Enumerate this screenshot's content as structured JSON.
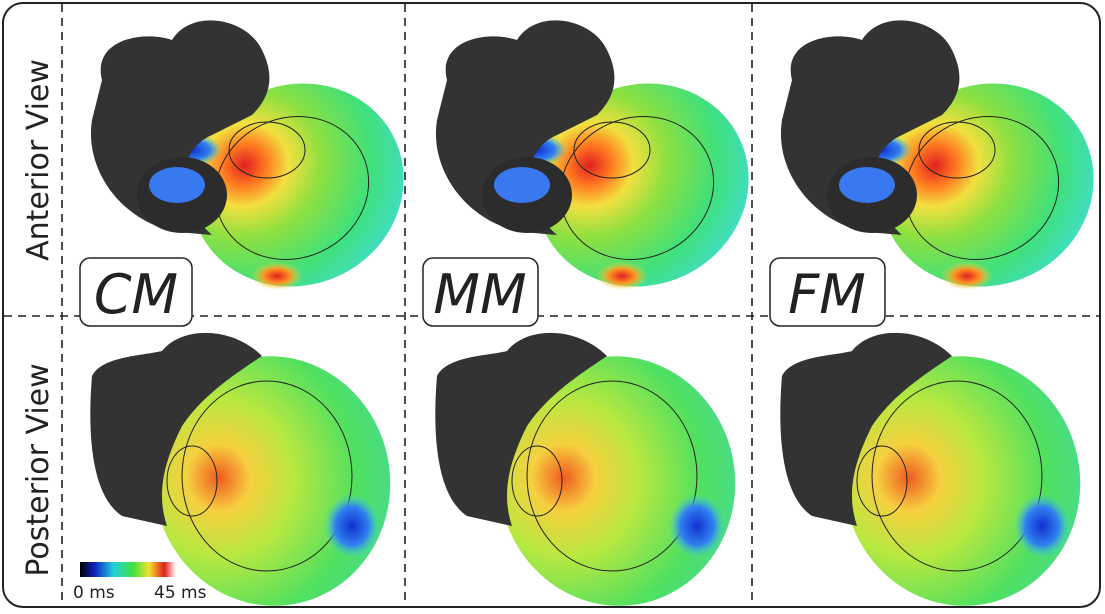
{
  "row_labels": [
    "Anterior View",
    "Posterior View"
  ],
  "column_labels": [
    "CM",
    "MM",
    "FM"
  ],
  "colorbar": {
    "min_label": "0 ms",
    "max_label": "45 ms"
  }
}
